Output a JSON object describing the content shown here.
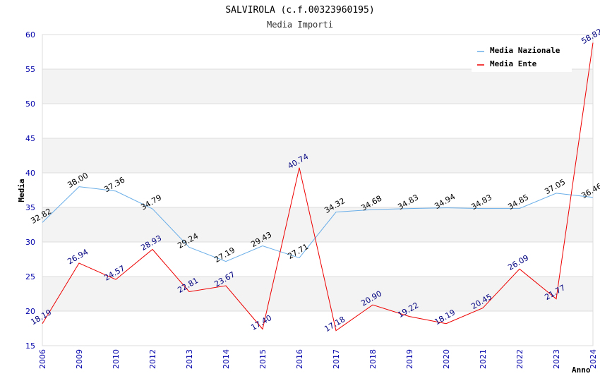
{
  "chart_data": {
    "type": "line",
    "title": "SALVIROLA (c.f.00323960195)",
    "subtitle": "Media Importi",
    "xlabel": "Anno",
    "ylabel": "Media",
    "ylim": [
      15,
      60
    ],
    "yticks": [
      15,
      20,
      25,
      30,
      35,
      40,
      45,
      50,
      55,
      60
    ],
    "categories": [
      "2006",
      "2009",
      "2010",
      "2012",
      "2013",
      "2014",
      "2015",
      "2016",
      "2017",
      "2018",
      "2019",
      "2020",
      "2021",
      "2022",
      "2023",
      "2024"
    ],
    "series": [
      {
        "name": "Media Nazionale",
        "color": "#6aaee8",
        "values": [
          32.82,
          38.0,
          37.36,
          34.79,
          29.24,
          27.19,
          29.43,
          27.71,
          34.32,
          34.68,
          34.83,
          34.94,
          34.83,
          34.85,
          37.05,
          36.46
        ],
        "labels": [
          "32.82",
          "38.00",
          "37.36",
          "34.79",
          "29.24",
          "27.19",
          "29.43",
          "27.71",
          "34.32",
          "34.68",
          "34.83",
          "34.94",
          "34.83",
          "34.85",
          "37.05",
          "36.46"
        ]
      },
      {
        "name": "Media Ente",
        "color": "#ee0000",
        "values": [
          18.19,
          26.94,
          24.57,
          28.93,
          22.81,
          23.67,
          17.4,
          40.74,
          17.18,
          20.9,
          19.22,
          18.19,
          20.45,
          26.09,
          21.77,
          58.82
        ],
        "labels": [
          "18.19",
          "26.94",
          "24.57",
          "28.93",
          "22.81",
          "23.67",
          "17.40",
          "40.74",
          "17.18",
          "20.90",
          "19.22",
          "18.19",
          "20.45",
          "26.09",
          "21.77",
          "58.82"
        ]
      }
    ],
    "grid": true,
    "legend": "top-right"
  }
}
